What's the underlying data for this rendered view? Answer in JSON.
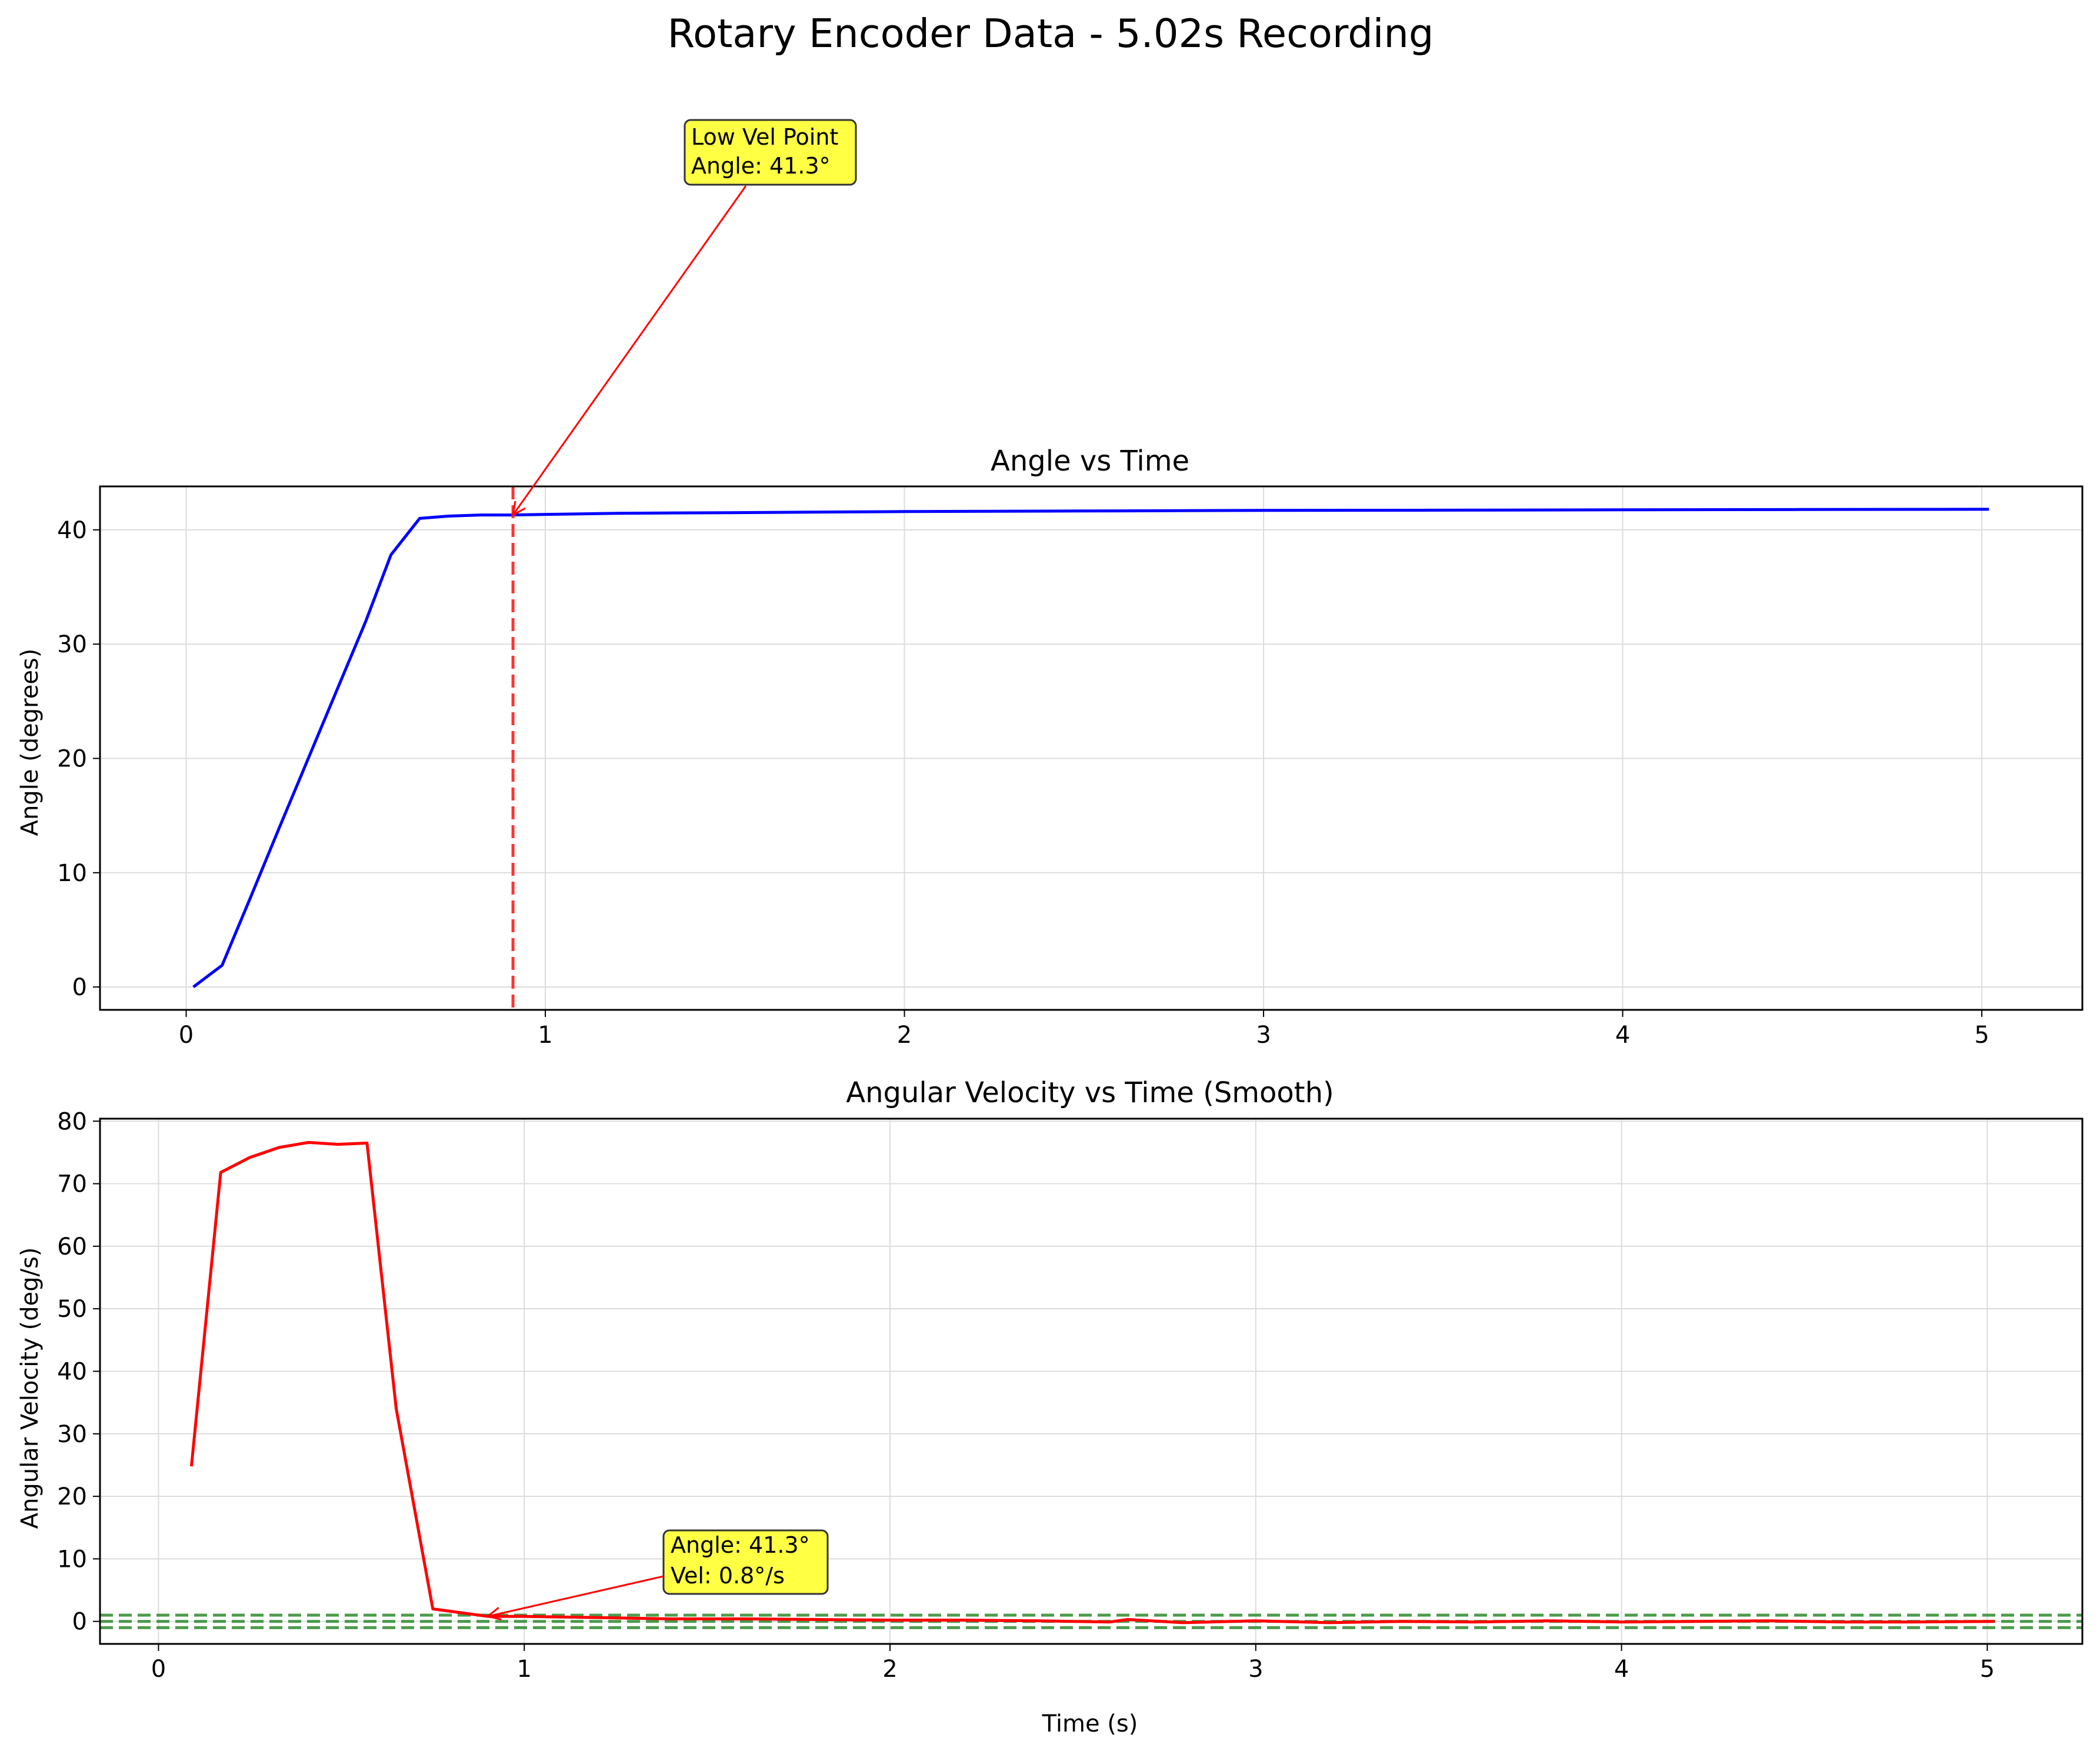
{
  "figure": {
    "suptitle": "Rotary Encoder Data - 5.02s Recording"
  },
  "colors": {
    "angle_line": "#0000ff",
    "velocity_line": "#ff0000",
    "marker_line": "#ff3333",
    "threshold_line": "#2e8b2e",
    "annotation_bg": "#ffff44",
    "grid": "#dcdcdc"
  },
  "chart_data": [
    {
      "type": "line",
      "title": "Angle vs Time",
      "xlabel": "",
      "ylabel": "Angle (degrees)",
      "xlim": [
        -0.24,
        5.28
      ],
      "ylim": [
        -2.0,
        43.8
      ],
      "xticks": [
        0,
        1,
        2,
        3,
        4,
        5
      ],
      "yticks": [
        0,
        10,
        20,
        30,
        40
      ],
      "grid": true,
      "series": [
        {
          "x": [
            0.02,
            0.1,
            0.18,
            0.26,
            0.34,
            0.42,
            0.5,
            0.57,
            0.65,
            0.73,
            0.82,
            0.9,
            1.0,
            1.2,
            1.5,
            2.0,
            2.5,
            3.0,
            3.5,
            4.0,
            4.5,
            5.02
          ],
          "y": [
            0.0,
            1.9,
            7.9,
            14.0,
            20.0,
            26.0,
            32.0,
            37.8,
            41.0,
            41.2,
            41.3,
            41.3,
            41.35,
            41.45,
            41.5,
            41.6,
            41.65,
            41.7,
            41.72,
            41.75,
            41.78,
            41.8
          ]
        }
      ],
      "vline": {
        "x": 0.91
      },
      "annotation": {
        "lines": [
          "Low Vel Point",
          "Angle: 41.3°"
        ],
        "point": [
          0.91,
          41.3
        ]
      }
    },
    {
      "type": "line",
      "title": "Angular Velocity vs Time (Smooth)",
      "xlabel": "Time (s)",
      "ylabel": "Angular Velocity (deg/s)",
      "xlim": [
        -0.16,
        5.26
      ],
      "ylim": [
        -3.6,
        80.4
      ],
      "xticks": [
        0,
        1,
        2,
        3,
        4,
        5
      ],
      "yticks": [
        0,
        10,
        20,
        30,
        40,
        50,
        60,
        70,
        80
      ],
      "grid": true,
      "series": [
        {
          "x": [
            0.09,
            0.17,
            0.25,
            0.33,
            0.41,
            0.49,
            0.57,
            0.65,
            0.75,
            0.9,
            1.0,
            1.2,
            1.4,
            1.6,
            1.8,
            2.0,
            2.2,
            2.4,
            2.6,
            2.65,
            2.8,
            3.0,
            3.2,
            3.4,
            3.6,
            3.8,
            4.0,
            4.2,
            4.4,
            4.6,
            4.8,
            5.02
          ],
          "y": [
            24.8,
            71.8,
            74.2,
            75.8,
            76.6,
            76.3,
            76.5,
            34.0,
            2.0,
            0.8,
            0.8,
            0.6,
            0.4,
            0.4,
            0.3,
            0.2,
            0.2,
            0.1,
            -0.1,
            0.3,
            -0.2,
            0.1,
            -0.2,
            0.0,
            -0.1,
            0.1,
            -0.1,
            0.0,
            0.1,
            -0.1,
            -0.1,
            0.0
          ]
        }
      ],
      "hlines": [
        1.0,
        0.0,
        -1.0
      ],
      "annotation": {
        "lines": [
          "Angle: 41.3°",
          "Vel: 0.8°/s"
        ],
        "point": [
          0.9,
          0.8
        ]
      }
    }
  ]
}
